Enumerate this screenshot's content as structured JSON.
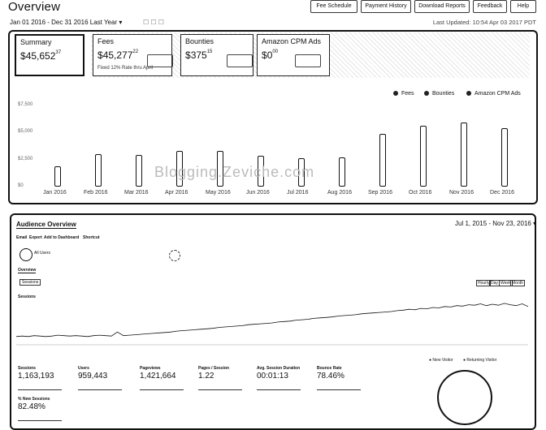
{
  "header": {
    "title": "Overview",
    "buttons": [
      "Fee Schedule",
      "Payment History",
      "Download Reports",
      "Feedback",
      "Help"
    ],
    "date_range": "Jan 01 2016 - Dec 31 2016",
    "period": "Last Year",
    "last_updated": "Last Updated: 10:54 Apr 03 2017 PDT"
  },
  "summary_cards": {
    "summary": {
      "label": "Summary",
      "value": "45,652",
      "cents": "37"
    },
    "fees": {
      "label": "Fees",
      "value": "45,277",
      "cents": "22",
      "sub": "Fixed 12% Rate thru April"
    },
    "bounties": {
      "label": "Bounties",
      "value": "375",
      "cents": "15"
    },
    "cpm": {
      "label": "Amazon CPM Ads",
      "value": "0",
      "cents": "00"
    }
  },
  "legend": [
    "Fees",
    "Bounties",
    "Amazon CPM Ads"
  ],
  "chart_data": {
    "type": "bar",
    "categories": [
      "Jan 2016",
      "Feb 2016",
      "Mar 2016",
      "Apr 2016",
      "May 2016",
      "Jun 2016",
      "Jul 2016",
      "Aug 2016",
      "Sep 2016",
      "Oct 2016",
      "Nov 2016",
      "Dec 2016"
    ],
    "series": [
      {
        "name": "Fees",
        "values": [
          1850,
          2980,
          2900,
          3300,
          3300,
          2830,
          2600,
          2700,
          4900,
          5600,
          5900,
          5400
        ]
      }
    ],
    "ylim": [
      0,
      7500
    ],
    "y_ticks": [
      0,
      2500,
      5000,
      7500
    ],
    "legend": "top-right",
    "grid": false
  },
  "watermark": "Blogging.Zeviche.com",
  "audience": {
    "title": "Audience Overview",
    "date_range": "Jul 1, 2015 - Nov 23, 2016",
    "tabs": [
      "Email",
      "Export",
      "Add to Dashboard",
      "Shortcut"
    ],
    "segment": "All Users",
    "metric_tab": "Overview",
    "metric_selector": "Sessions",
    "time_buttons": [
      "Hourly",
      "Day",
      "Week",
      "Month"
    ],
    "series_label": "Sessions",
    "series_values": [
      20,
      21,
      20,
      22,
      21,
      20,
      21,
      23,
      22,
      21,
      22,
      21,
      20,
      22,
      23,
      22,
      21,
      30,
      22,
      23,
      24,
      25,
      26,
      27,
      28,
      29,
      30,
      32,
      33,
      34,
      35,
      36,
      37,
      38,
      40,
      41,
      42,
      43,
      44,
      46,
      47,
      48,
      49,
      50,
      52,
      53,
      54,
      56,
      57,
      58,
      60,
      61,
      62,
      63,
      65,
      66,
      67,
      68,
      70,
      71,
      72,
      73,
      74,
      75,
      77,
      78,
      80,
      79,
      82,
      81,
      84,
      83,
      86,
      85,
      88,
      87,
      90,
      89,
      92,
      88,
      91,
      89,
      93,
      90,
      88,
      92,
      86
    ],
    "metrics": [
      {
        "label": "Sessions",
        "value": "1,163,193"
      },
      {
        "label": "Users",
        "value": "959,443"
      },
      {
        "label": "Pageviews",
        "value": "1,421,664"
      },
      {
        "label": "Pages / Session",
        "value": "1.22"
      },
      {
        "label": "Avg. Session Duration",
        "value": "00:01:13"
      },
      {
        "label": "Bounce Rate",
        "value": "78.46%"
      },
      {
        "label": "% New Sessions",
        "value": "82.48%"
      }
    ],
    "pie_legend": [
      "New Visitor",
      "Returning Visitor"
    ]
  }
}
